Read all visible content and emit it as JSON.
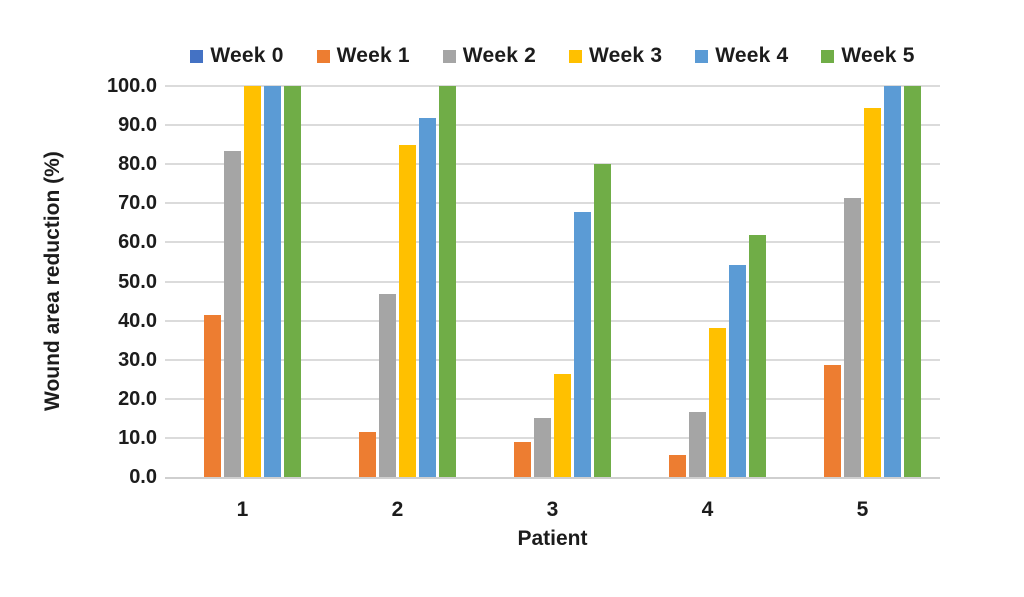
{
  "chart_data": {
    "type": "bar",
    "title": "",
    "xlabel": "Patient",
    "ylabel": "Wound area reduction (%)",
    "ylim": [
      0,
      100
    ],
    "ytick_step": 10,
    "ytick_labels": [
      "100.0",
      "90.0",
      "80.0",
      "70.0",
      "60.0",
      "50.0",
      "40.0",
      "30.0",
      "20.0",
      "10.0",
      "0.0"
    ],
    "grid": true,
    "legend_position": "top",
    "categories": [
      "1",
      "2",
      "3",
      "4",
      "5"
    ],
    "series": [
      {
        "name": "Week 0",
        "color": "#4472C4",
        "values": [
          0,
          0,
          0,
          0,
          0
        ]
      },
      {
        "name": "Week 1",
        "color": "#ED7D31",
        "values": [
          41.5,
          11.5,
          9.0,
          5.7,
          28.6
        ]
      },
      {
        "name": "Week 2",
        "color": "#A5A5A5",
        "values": [
          83.3,
          46.7,
          15.0,
          16.7,
          71.4
        ]
      },
      {
        "name": "Week 3",
        "color": "#FFC000",
        "values": [
          100.0,
          85.0,
          26.3,
          38.0,
          94.3
        ]
      },
      {
        "name": "Week 4",
        "color": "#5B9BD5",
        "values": [
          100.0,
          91.7,
          67.7,
          54.3,
          100.0
        ]
      },
      {
        "name": "Week 5",
        "color": "#70AD47",
        "values": [
          100.0,
          100.0,
          80.0,
          62.0,
          100.0
        ]
      }
    ]
  }
}
